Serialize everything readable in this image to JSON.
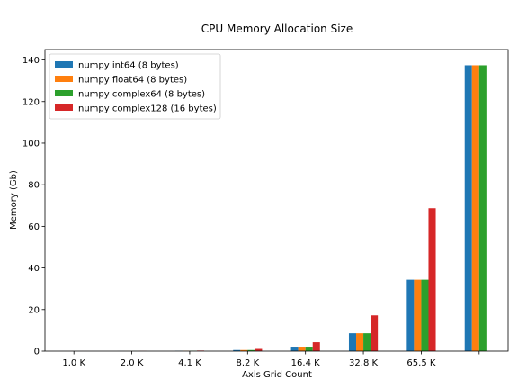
{
  "chart_data": {
    "type": "bar",
    "title": "CPU Memory Allocation Size",
    "xlabel": "Axis Grid Count",
    "ylabel": "Memory (Gb)",
    "categories": [
      "1.0 K",
      "2.0 K",
      "4.1 K",
      "8.2 K",
      "16.4 K",
      "32.8 K",
      "65.5 K",
      ""
    ],
    "ylim": [
      0,
      145
    ],
    "yticks": [
      0,
      20,
      40,
      60,
      80,
      100,
      120,
      140
    ],
    "legend_position": "top-left",
    "grid": false,
    "series": [
      {
        "name": "numpy int64 (8 bytes)",
        "color": "#1f77b4",
        "values": [
          0.008,
          0.03,
          0.13,
          0.54,
          2.15,
          8.6,
          34.36,
          137.44
        ]
      },
      {
        "name": "numpy float64 (8 bytes)",
        "color": "#ff7f0e",
        "values": [
          0.008,
          0.03,
          0.13,
          0.54,
          2.15,
          8.6,
          34.36,
          137.44
        ]
      },
      {
        "name": "numpy complex64 (8 bytes)",
        "color": "#2ca02c",
        "values": [
          0.008,
          0.03,
          0.13,
          0.54,
          2.15,
          8.6,
          34.36,
          137.44
        ]
      },
      {
        "name": "numpy complex128 (16 bytes)",
        "color": "#d62728",
        "values": [
          0.016,
          0.07,
          0.27,
          1.07,
          4.3,
          17.2,
          68.72,
          0
        ]
      }
    ]
  }
}
